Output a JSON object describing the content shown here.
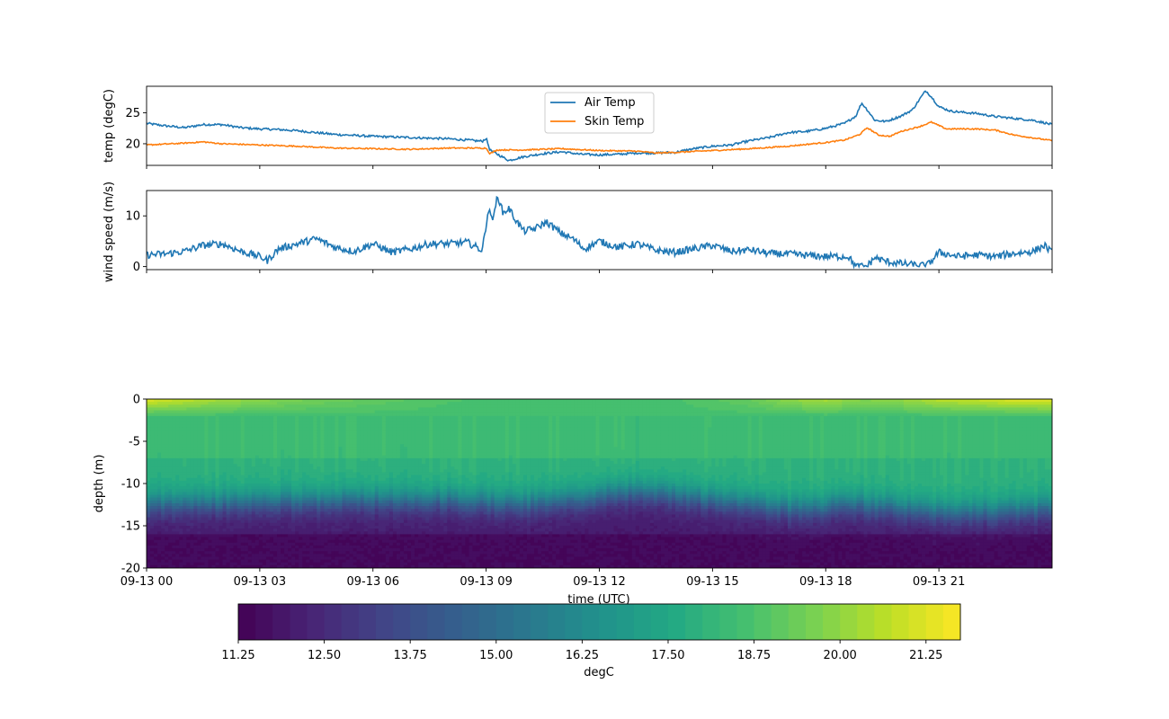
{
  "chart_data": [
    {
      "type": "line",
      "ylabel": "temp (degC)",
      "yticks": [
        20,
        25
      ],
      "ylim": [
        16.5,
        29.3
      ],
      "xlim_hours": [
        0,
        24
      ],
      "legend": {
        "placement": "top-center",
        "entries": [
          "Air Temp",
          "Skin Temp"
        ]
      },
      "series": [
        {
          "name": "Air Temp",
          "color": "#1f77b4",
          "x_hours": [
            0,
            0.5,
            1,
            1.5,
            2,
            2.5,
            3,
            3.5,
            4,
            4.5,
            5,
            6,
            7,
            8,
            8.5,
            8.9,
            9.0,
            9.1,
            9.3,
            9.6,
            10,
            10.5,
            11,
            11.5,
            12,
            12.5,
            13,
            13.5,
            14,
            14.5,
            15,
            15.5,
            16,
            16.5,
            17,
            17.5,
            18,
            18.5,
            18.8,
            18.95,
            19.1,
            19.3,
            19.6,
            20,
            20.3,
            20.5,
            20.65,
            20.8,
            21,
            21.3,
            21.6,
            22,
            22.5,
            23,
            23.5,
            24
          ],
          "y": [
            23.3,
            22.9,
            22.6,
            23.1,
            23.1,
            22.6,
            22.4,
            22.3,
            22.1,
            21.8,
            21.5,
            21.2,
            21.0,
            20.8,
            20.6,
            20.4,
            20.9,
            19.0,
            18.3,
            17.3,
            17.9,
            18.4,
            18.7,
            18.3,
            18.2,
            18.3,
            18.5,
            18.5,
            18.6,
            19.2,
            19.6,
            19.8,
            20.5,
            21.0,
            21.8,
            22.0,
            22.5,
            23.3,
            24.5,
            26.6,
            25.5,
            23.8,
            23.6,
            24.5,
            25.5,
            27.3,
            28.6,
            27.6,
            26.0,
            25.3,
            25.1,
            24.9,
            24.4,
            24.1,
            23.8,
            23.1
          ]
        },
        {
          "name": "Skin Temp",
          "color": "#ff7f0e",
          "x_hours": [
            0,
            1,
            1.5,
            2,
            3,
            4,
            5,
            6,
            7,
            8,
            9.0,
            9.1,
            9.3,
            9.6,
            10,
            11,
            12,
            13,
            13.5,
            14,
            15,
            16,
            17,
            18,
            18.5,
            18.9,
            19.1,
            19.4,
            19.7,
            20,
            20.5,
            20.8,
            21.2,
            22,
            22.5,
            23,
            24
          ],
          "y": [
            19.8,
            20.1,
            20.3,
            20.0,
            19.8,
            19.6,
            19.3,
            19.2,
            19.1,
            19.3,
            19.3,
            18.4,
            19.0,
            19.0,
            19.0,
            19.2,
            18.9,
            18.8,
            18.5,
            18.6,
            18.9,
            19.2,
            19.6,
            20.2,
            20.6,
            21.5,
            22.6,
            21.4,
            21.2,
            22.0,
            22.8,
            23.5,
            22.4,
            22.4,
            22.2,
            21.4,
            20.5
          ]
        }
      ]
    },
    {
      "type": "line",
      "ylabel": "wind speed (m/s)",
      "yticks": [
        0,
        10
      ],
      "ylim": [
        -0.6,
        15.0
      ],
      "xlim_hours": [
        0,
        24
      ],
      "series": [
        {
          "name": "",
          "color": "#1f77b4",
          "x_hours": [
            0,
            0.5,
            1,
            1.5,
            2,
            2.5,
            3,
            3.2,
            3.5,
            4,
            4.5,
            5,
            5.5,
            6,
            6.5,
            7,
            7.5,
            8,
            8.5,
            8.9,
            9.05,
            9.2,
            9.3,
            9.45,
            9.6,
            9.8,
            10,
            10.3,
            10.6,
            11,
            11.3,
            11.6,
            12,
            12.5,
            13,
            13.5,
            14,
            14.5,
            15,
            15.5,
            16,
            16.5,
            17,
            17.5,
            18,
            18.6,
            18.8,
            19.1,
            19.3,
            19.6,
            20,
            20.5,
            20.7,
            21,
            21.5,
            22,
            22.5,
            23,
            23.5,
            23.8,
            24
          ],
          "y": [
            2.3,
            2.5,
            3.0,
            4.2,
            4.5,
            3.0,
            2.0,
            1.2,
            3.5,
            4.5,
            5.5,
            3.8,
            3.0,
            4.5,
            2.8,
            3.5,
            4.5,
            4.5,
            4.8,
            3.2,
            11.0,
            9.5,
            14.2,
            10.5,
            11.5,
            9.0,
            7.0,
            7.5,
            8.8,
            6.5,
            5.5,
            3.5,
            5.0,
            3.8,
            4.5,
            3.2,
            2.8,
            3.5,
            4.2,
            3.0,
            3.3,
            2.6,
            2.5,
            2.2,
            2.0,
            2.0,
            0.0,
            0.1,
            1.8,
            1.0,
            0.6,
            0.2,
            0.3,
            2.8,
            2.0,
            2.3,
            2.0,
            2.6,
            3.0,
            4.2,
            2.7
          ]
        }
      ]
    },
    {
      "type": "heatmap",
      "ylabel": "depth (m)",
      "xlabel": "time (UTC)",
      "yticks": [
        0,
        -5,
        -10,
        -15,
        -20
      ],
      "ylim": [
        -20,
        0
      ],
      "xlim_hours": [
        0,
        24
      ],
      "xticks": [
        "09-13 00",
        "09-13 03",
        "09-13 06",
        "09-13 09",
        "09-13 12",
        "09-13 15",
        "09-13 18",
        "09-13 21"
      ],
      "thermocline_depth_by_hour": {
        "x_hours": [
          0,
          3,
          6,
          8,
          9,
          10,
          11,
          12,
          13,
          14,
          15,
          16,
          17,
          17.5,
          18.5,
          19,
          20,
          21,
          22,
          23,
          24
        ],
        "depth": [
          -12.5,
          -12.3,
          -12.0,
          -12.0,
          -12.3,
          -12.5,
          -12.2,
          -11.5,
          -11.0,
          -11.5,
          -12.0,
          -12.5,
          -13.0,
          -13.2,
          -12.5,
          -12.6,
          -13.0,
          -13.5,
          -13.5,
          -13.3,
          -13.0
        ]
      },
      "surface_temp_by_hour": {
        "x_hours": [
          0,
          2,
          4,
          6,
          8,
          10,
          12,
          14,
          16,
          17,
          18,
          19,
          20,
          21,
          22,
          23,
          24
        ],
        "temp": [
          21.3,
          20.3,
          19.6,
          19.2,
          18.8,
          18.6,
          18.6,
          18.7,
          19.3,
          20.0,
          20.4,
          19.8,
          20.1,
          20.7,
          20.9,
          21.3,
          21.4
        ]
      },
      "colorbar": {
        "label": "degC",
        "range": [
          11.25,
          21.75
        ],
        "ticks": [
          "11.25",
          "12.50",
          "13.75",
          "15.00",
          "16.25",
          "17.50",
          "18.75",
          "20.00",
          "21.25"
        ],
        "levels": 42,
        "colormap": "viridis"
      }
    }
  ],
  "colors": {
    "air": "#1f77b4",
    "skin": "#ff7f0e",
    "wind": "#1f77b4"
  }
}
